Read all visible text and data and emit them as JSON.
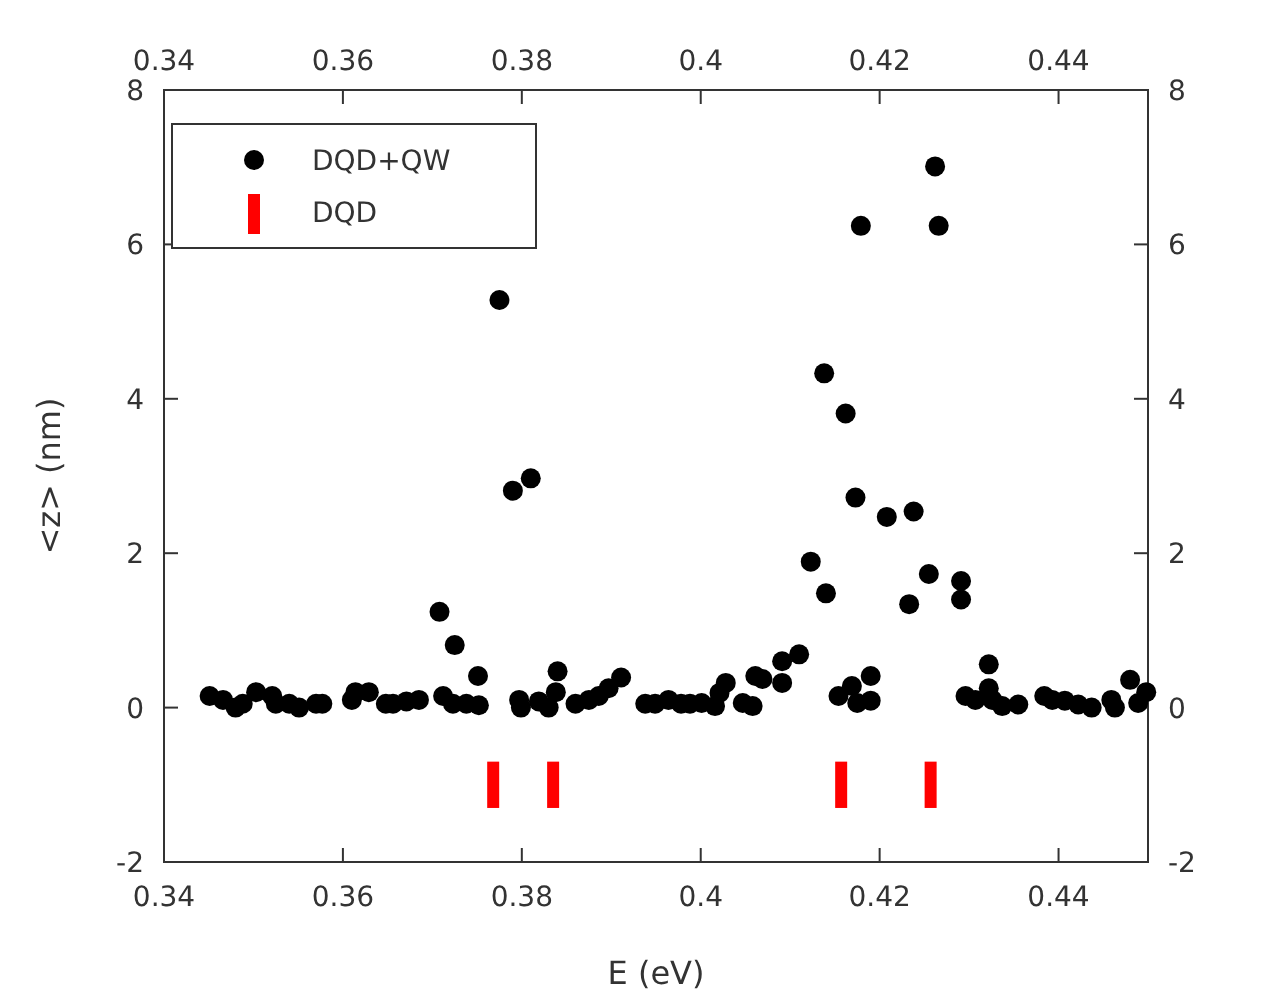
{
  "chart_data": {
    "type": "scatter",
    "xlabel": "E (eV)",
    "ylabel": "<z> (nm)",
    "xlim": [
      0.34,
      0.45
    ],
    "xticks": [
      0.34,
      0.36,
      0.38,
      0.4,
      0.42,
      0.44
    ],
    "x2lim": [
      0.34,
      0.45
    ],
    "x2ticks": [
      0.34,
      0.36,
      0.38,
      0.4,
      0.42,
      0.44
    ],
    "ylim": [
      -2,
      8
    ],
    "yticks": [
      -2,
      0,
      2,
      4,
      6,
      8
    ],
    "y2lim": [
      -2,
      8
    ],
    "y2ticks": [
      -2,
      0,
      2,
      4,
      6,
      8
    ],
    "grid": false,
    "legend": "top left",
    "series": [
      {
        "name": "DQD+QW",
        "marker": "circle",
        "color": "#000000",
        "x": [
          0.3451,
          0.3466,
          0.348,
          0.3488,
          0.3503,
          0.3521,
          0.3525,
          0.354,
          0.3551,
          0.357,
          0.3577,
          0.361,
          0.3614,
          0.3629,
          0.3648,
          0.3656,
          0.3671,
          0.3685,
          0.3708,
          0.3712,
          0.3723,
          0.3725,
          0.3738,
          0.3751,
          0.3752,
          0.3775,
          0.379,
          0.3797,
          0.3799,
          0.381,
          0.3819,
          0.383,
          0.384,
          0.3838,
          0.386,
          0.3875,
          0.3886,
          0.3897,
          0.3911,
          0.3938,
          0.3949,
          0.3964,
          0.3978,
          0.3988,
          0.4001,
          0.4016,
          0.4021,
          0.4028,
          0.4047,
          0.4058,
          0.4061,
          0.4069,
          0.4091,
          0.4091,
          0.411,
          0.4123,
          0.4138,
          0.414,
          0.4154,
          0.4162,
          0.4169,
          0.4173,
          0.4175,
          0.4179,
          0.419,
          0.419,
          0.4208,
          0.4233,
          0.4238,
          0.4255,
          0.4262,
          0.4266,
          0.4291,
          0.4291,
          0.4296,
          0.4307,
          0.4322,
          0.4322,
          0.4326,
          0.4337,
          0.4355,
          0.4384,
          0.4393,
          0.4407,
          0.4422,
          0.4437,
          0.4459,
          0.4463,
          0.448,
          0.4489,
          0.4498
        ],
        "values": [
          0.15,
          0.1,
          0,
          0.05,
          0.2,
          0.15,
          0.05,
          0.05,
          0,
          0.05,
          0.05,
          0.1,
          0.2,
          0.2,
          0.05,
          0.05,
          0.08,
          0.1,
          1.24,
          0.15,
          0.05,
          0.81,
          0.05,
          0.41,
          0.03,
          5.28,
          2.81,
          0.1,
          0,
          2.97,
          0.08,
          0,
          0.47,
          0.2,
          0.05,
          0.1,
          0.15,
          0.25,
          0.39,
          0.05,
          0.05,
          0.1,
          0.05,
          0.05,
          0.06,
          0.02,
          0.19,
          0.32,
          0.06,
          0.02,
          0.41,
          0.37,
          0.32,
          0.6,
          0.69,
          1.89,
          4.33,
          1.48,
          0.15,
          3.81,
          0.28,
          2.72,
          0.06,
          6.24,
          0.09,
          0.41,
          2.47,
          1.34,
          2.54,
          1.73,
          7.01,
          6.24,
          1.64,
          1.4,
          0.15,
          0.1,
          0.56,
          0.25,
          0.1,
          0.02,
          0.04,
          0.15,
          0.1,
          0.09,
          0.04,
          0,
          0.1,
          0,
          0.36,
          0.06,
          0.2
        ]
      },
      {
        "name": "DQD",
        "type": "bar",
        "color": "#ff0000",
        "x": [
          0.3768,
          0.3835,
          0.4157,
          0.4257
        ],
        "base": [
          -1.3,
          -1.3,
          -1.3,
          -1.3
        ],
        "values": [
          0.6,
          0.6,
          0.6,
          0.6
        ]
      }
    ]
  }
}
